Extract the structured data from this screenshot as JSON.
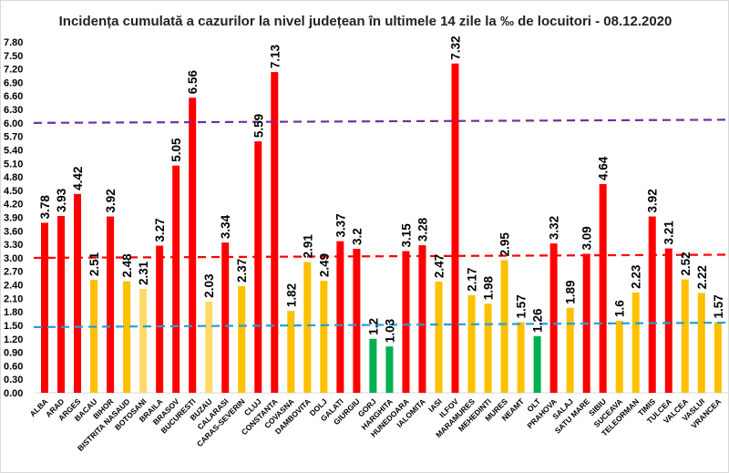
{
  "chart_data": {
    "type": "bar",
    "title": "Incidența cumulată a cazurilor la nivel județean în ultimele 14 zile la ‰ de locuitori - 08.12.2020",
    "xlabel": "",
    "ylabel": "",
    "ylim": [
      0,
      7.8
    ],
    "ytick_step": 0.3,
    "grid": false,
    "legend": "none",
    "categories": [
      "ALBA",
      "ARAD",
      "ARGES",
      "BACAU",
      "BIHOR",
      "BISTRITA NASAUD",
      "BOTOSANI",
      "BRAILA",
      "BRASOV",
      "BUCURESTI",
      "BUZAU",
      "CALARASI",
      "CARAS-SEVERIN",
      "CLUJ",
      "CONSTANTA",
      "COVASNA",
      "DAMBOVITA",
      "DOLJ",
      "GALATI",
      "GIURGIU",
      "GORJ",
      "HARGHITA",
      "HUNEDOARA",
      "IALOMITA",
      "IASI",
      "ILFOV",
      "MARAMURES",
      "MEHEDINTI",
      "MURES",
      "NEAMT",
      "OLT",
      "PRAHOVA",
      "SALAJ",
      "SATU MARE",
      "SIBIU",
      "SUCEAVA",
      "TELEORMAN",
      "TIMIS",
      "TULCEA",
      "VALCEA",
      "VASLUI",
      "VRANCEA"
    ],
    "values": [
      3.78,
      3.93,
      4.42,
      2.51,
      3.92,
      2.48,
      2.31,
      3.27,
      5.05,
      6.56,
      2.03,
      3.34,
      2.37,
      5.59,
      7.13,
      1.82,
      2.91,
      2.49,
      3.37,
      3.2,
      1.2,
      1.03,
      3.15,
      3.28,
      2.47,
      7.32,
      2.17,
      1.98,
      2.95,
      1.57,
      1.26,
      3.32,
      1.89,
      3.09,
      4.64,
      1.6,
      2.23,
      3.92,
      3.21,
      2.52,
      2.22,
      1.57
    ],
    "data_labels": [
      "3.78",
      "3.93",
      "4.42",
      "2.51",
      "3.92",
      "2.48",
      "2.31",
      "3.27",
      "5.05",
      "6.56",
      "2.03",
      "3.34",
      "2.37",
      "5.59",
      "7.13",
      "1.82",
      "2.91",
      "2.49",
      "3.37",
      "3.2",
      "1.2",
      "1.03",
      "3.15",
      "3.28",
      "2.47",
      "7.32",
      "2.17",
      "1.98",
      "2.95",
      "1.57",
      "1.26",
      "3.32",
      "1.89",
      "3.09",
      "4.64",
      "1.6",
      "2.23",
      "3.92",
      "3.21",
      "2.52",
      "2.22",
      "1.57"
    ],
    "bar_colors": [
      "red",
      "red",
      "red",
      "orange",
      "red",
      "orange",
      "lightyellow",
      "red",
      "red",
      "red",
      "lightyellow",
      "red",
      "orange",
      "red",
      "red",
      "orange",
      "orange",
      "orange",
      "red",
      "red",
      "green",
      "green",
      "red",
      "red",
      "orange",
      "red",
      "orange",
      "orange",
      "orange",
      "orange",
      "green",
      "red",
      "orange",
      "red",
      "red",
      "orange",
      "orange",
      "red",
      "red",
      "orange",
      "orange",
      "orange"
    ],
    "colors": {
      "red": "#FF0000",
      "orange": "#FFC000",
      "lightyellow": "#FFD966",
      "green": "#00B050"
    },
    "reference_lines": [
      {
        "start": 6.0,
        "end": 6.07,
        "color": "#7030A0",
        "style": "dashed"
      },
      {
        "start": 3.0,
        "end": 3.07,
        "color": "#FF0000",
        "style": "dashed"
      },
      {
        "start": 1.46,
        "end": 1.56,
        "color": "#1FA0E0",
        "style": "dashed"
      }
    ]
  }
}
